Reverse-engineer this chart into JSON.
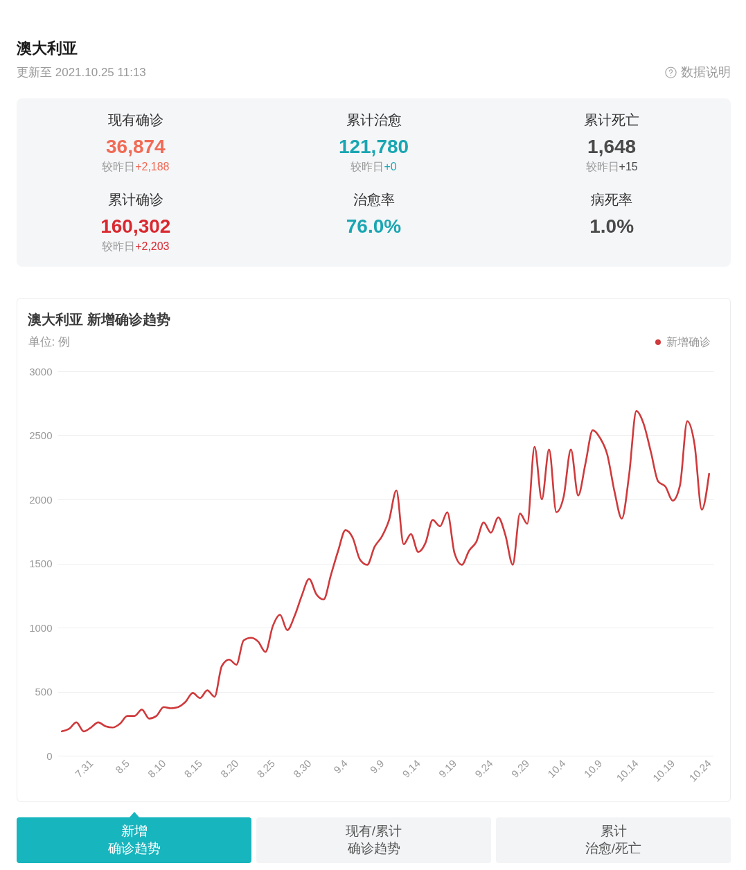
{
  "chart_data": [
    {
      "type": "other",
      "title": "澳大利亚",
      "subtitle": "更新至 2021.10.25 11:13",
      "annotations": [
        "数据说明",
        "现有确诊",
        "36,874",
        "较昨日+2,188",
        "累计治愈",
        "121,780",
        "较昨日+0",
        "累计死亡",
        "1,648",
        "较昨日+15",
        "累计确诊",
        "160,302",
        "较昨日+2,203",
        "治愈率",
        "76.0%",
        "病死率",
        "1.0%"
      ]
    },
    {
      "type": "line",
      "title": "澳大利亚 新增确诊趋势",
      "ylabel": "单位: 例",
      "categories": [
        null,
        null,
        null,
        null,
        "7.31",
        null,
        null,
        null,
        null,
        "8.5",
        null,
        null,
        null,
        null,
        "8.10",
        null,
        null,
        null,
        null,
        "8.15",
        null,
        null,
        null,
        null,
        "8.20",
        null,
        null,
        null,
        null,
        "8.25",
        null,
        null,
        null,
        null,
        "8.30",
        null,
        null,
        null,
        null,
        "9.4",
        null,
        null,
        null,
        null,
        "9.9",
        null,
        null,
        null,
        null,
        "9.14",
        null,
        null,
        null,
        null,
        "9.19",
        null,
        null,
        null,
        null,
        "9.24",
        null,
        null,
        null,
        null,
        "9.29",
        null,
        null,
        null,
        null,
        "10.4",
        null,
        null,
        null,
        null,
        "10.9",
        null,
        null,
        null,
        null,
        "10.14",
        null,
        null,
        null,
        null,
        "10.19",
        null,
        null,
        null,
        null,
        "10.24"
      ],
      "series": [
        {
          "name": "新增确诊",
          "color": "#cf3a3c",
          "values": [
            190,
            210,
            260,
            190,
            220,
            260,
            230,
            220,
            250,
            310,
            310,
            360,
            290,
            310,
            380,
            370,
            380,
            420,
            490,
            450,
            510,
            460,
            700,
            750,
            710,
            900,
            920,
            890,
            810,
            1010,
            1100,
            980,
            1090,
            1250,
            1380,
            1260,
            1220,
            1410,
            1600,
            1760,
            1700,
            1530,
            1490,
            1630,
            1710,
            1840,
            2070,
            1650,
            1730,
            1590,
            1660,
            1840,
            1790,
            1900,
            1580,
            1490,
            1600,
            1670,
            1820,
            1740,
            1860,
            1720,
            1490,
            1890,
            1810,
            2410,
            2000,
            2390,
            1900,
            2020,
            2390,
            2030,
            2280,
            2540,
            2480,
            2350,
            2060,
            1850,
            2190,
            2690,
            2590,
            2370,
            2140,
            2100,
            1990,
            2110,
            2610,
            2430,
            1920,
            2200
          ]
        }
      ],
      "ylim": [
        0,
        3000
      ],
      "yticks": [
        0,
        500,
        1000,
        1500,
        2000,
        2500,
        3000
      ],
      "grid": "y",
      "legend": "top right"
    },
    {
      "type": "other",
      "annotations": [
        "新增确诊趋势",
        "现有/累计确诊趋势",
        "累计治愈/死亡"
      ]
    }
  ]
}
